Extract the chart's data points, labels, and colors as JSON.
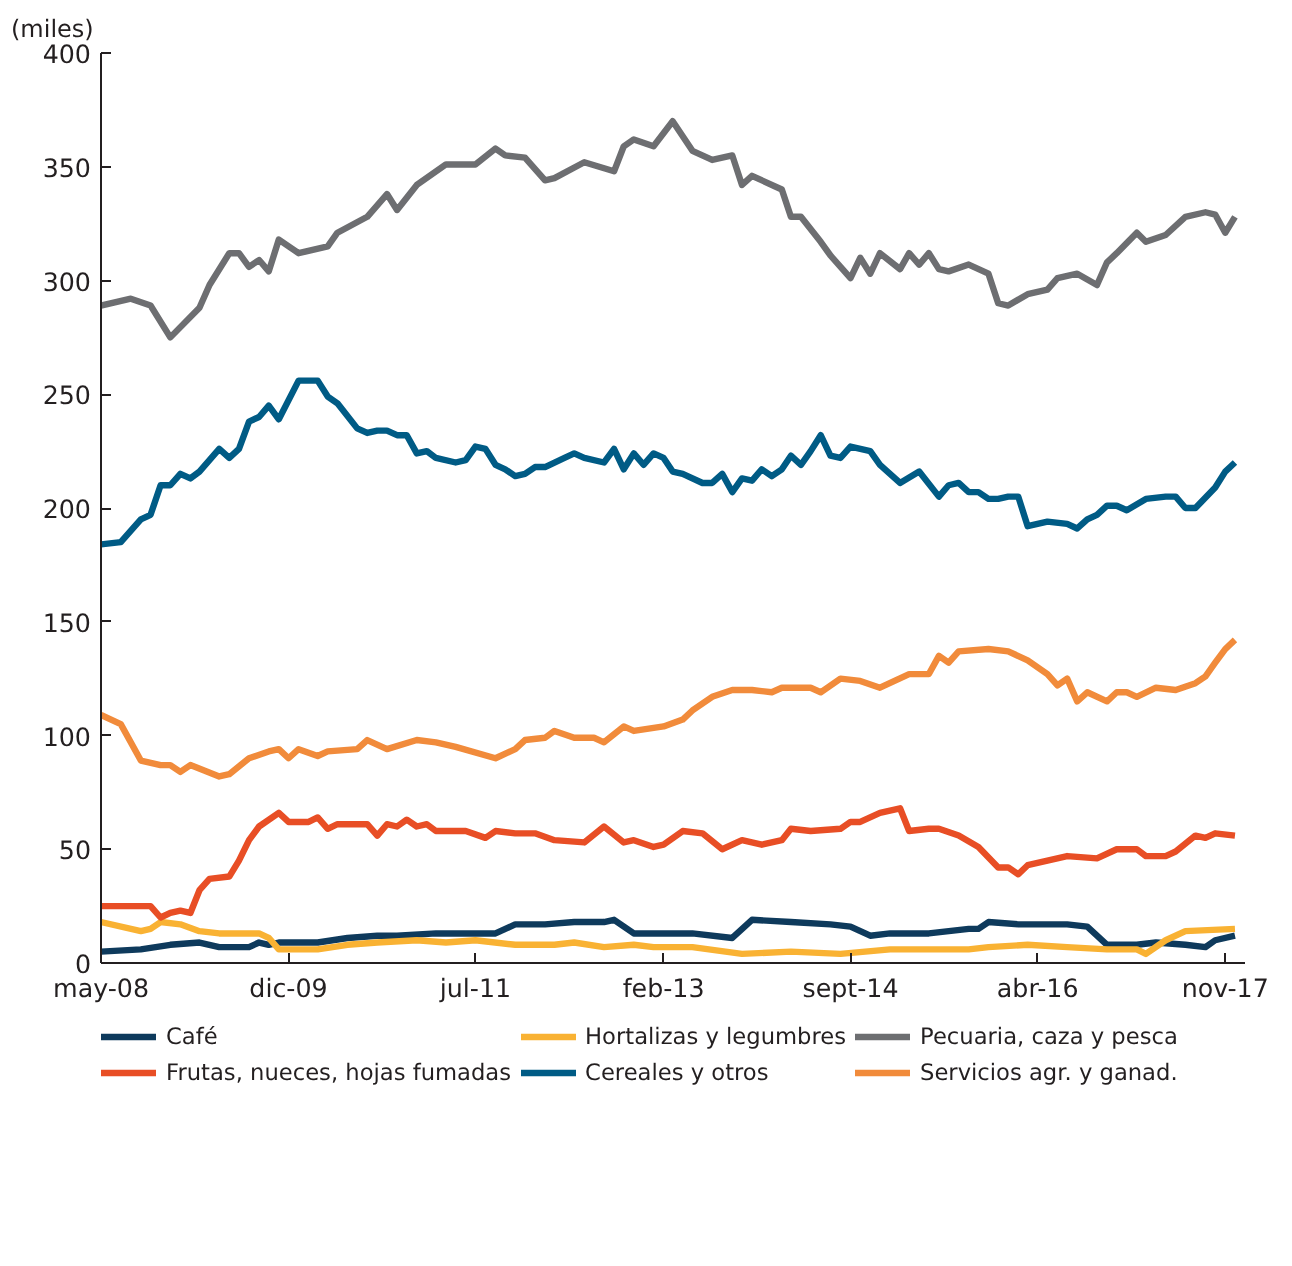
{
  "chart_data": {
    "type": "line",
    "ylabel": "(miles)",
    "xlim": [
      "2008-05",
      "2018-01"
    ],
    "ylim": [
      0,
      400
    ],
    "xticks": [
      {
        "value": "2008-05",
        "label": "may-08"
      },
      {
        "value": "2009-12",
        "label": "dic-09"
      },
      {
        "value": "2011-07",
        "label": "jul-11"
      },
      {
        "value": "2013-02",
        "label": "feb-13"
      },
      {
        "value": "2014-09",
        "label": "sept-14"
      },
      {
        "value": "2016-04",
        "label": "abr-16"
      },
      {
        "value": "2017-11",
        "label": "nov-17"
      }
    ],
    "yticks": [
      0,
      50,
      100,
      150,
      200,
      250,
      300,
      350,
      400
    ],
    "grid": false,
    "legend": "bottom",
    "marker": "none",
    "line_style": "solid",
    "series": [
      {
        "name": "Café",
        "color": "#0e3a5c",
        "x": [
          "2008-05",
          "2008-09",
          "2008-12",
          "2009-03",
          "2009-05",
          "2009-08",
          "2009-09",
          "2009-10",
          "2009-11",
          "2010-01",
          "2010-03",
          "2010-06",
          "2010-09",
          "2010-11",
          "2011-03",
          "2011-07",
          "2011-09",
          "2011-11",
          "2012-02",
          "2012-05",
          "2012-08",
          "2012-09",
          "2012-11",
          "2013-01",
          "2013-05",
          "2013-09",
          "2013-11",
          "2014-03",
          "2014-07",
          "2014-09",
          "2014-11",
          "2015-01",
          "2015-05",
          "2015-09",
          "2015-10",
          "2015-11",
          "2016-02",
          "2016-05",
          "2016-07",
          "2016-09",
          "2016-11",
          "2017-02",
          "2017-04",
          "2017-07",
          "2017-09",
          "2017-10",
          "2017-12"
        ],
        "values": [
          5,
          6,
          8,
          9,
          7,
          7,
          9,
          8,
          9,
          9,
          9,
          11,
          12,
          12,
          13,
          13,
          13,
          17,
          17,
          18,
          18,
          19,
          13,
          13,
          13,
          11,
          19,
          18,
          17,
          16,
          12,
          13,
          13,
          15,
          15,
          18,
          17,
          17,
          17,
          16,
          8,
          8,
          9,
          8,
          7,
          10,
          12
        ]
      },
      {
        "name": "Hortalizas y legumbres",
        "color": "#f9b233",
        "x": [
          "2008-05",
          "2008-09",
          "2008-10",
          "2008-11",
          "2009-01",
          "2009-03",
          "2009-05",
          "2009-09",
          "2009-10",
          "2009-11",
          "2010-03",
          "2010-06",
          "2010-09",
          "2011-01",
          "2011-04",
          "2011-07",
          "2011-11",
          "2012-03",
          "2012-05",
          "2012-08",
          "2012-11",
          "2013-01",
          "2013-05",
          "2013-10",
          "2014-03",
          "2014-08",
          "2015-01",
          "2015-05",
          "2015-09",
          "2015-11",
          "2016-03",
          "2016-07",
          "2016-11",
          "2017-02",
          "2017-03",
          "2017-05",
          "2017-07",
          "2017-12"
        ],
        "values": [
          18,
          14,
          15,
          18,
          17,
          14,
          13,
          13,
          11,
          6,
          6,
          8,
          9,
          10,
          9,
          10,
          8,
          8,
          9,
          7,
          8,
          7,
          7,
          4,
          5,
          4,
          6,
          6,
          6,
          7,
          8,
          7,
          6,
          6,
          4,
          10,
          14,
          15
        ]
      },
      {
        "name": "Pecuaria, caza y pesca",
        "color": "#6d6e71",
        "x": [
          "2008-05",
          "2008-08",
          "2008-10",
          "2008-12",
          "2009-03",
          "2009-04",
          "2009-06",
          "2009-07",
          "2009-08",
          "2009-09",
          "2009-10",
          "2009-11",
          "2010-01",
          "2010-04",
          "2010-05",
          "2010-08",
          "2010-10",
          "2010-11",
          "2011-01",
          "2011-04",
          "2011-07",
          "2011-09",
          "2011-10",
          "2011-12",
          "2012-02",
          "2012-03",
          "2012-06",
          "2012-09",
          "2012-10",
          "2012-11",
          "2013-01",
          "2013-03",
          "2013-05",
          "2013-07",
          "2013-09",
          "2013-10",
          "2013-11",
          "2014-02",
          "2014-03",
          "2014-04",
          "2014-06",
          "2014-07",
          "2014-09",
          "2014-10",
          "2014-11",
          "2014-12",
          "2015-02",
          "2015-03",
          "2015-04",
          "2015-05",
          "2015-06",
          "2015-07",
          "2015-09",
          "2015-11",
          "2015-12",
          "2016-01",
          "2016-03",
          "2016-05",
          "2016-06",
          "2016-08",
          "2016-10",
          "2016-11",
          "2016-12",
          "2017-02",
          "2017-03",
          "2017-05",
          "2017-07",
          "2017-09",
          "2017-10",
          "2017-11",
          "2017-12"
        ],
        "values": [
          289,
          292,
          289,
          275,
          288,
          298,
          312,
          312,
          306,
          309,
          304,
          318,
          312,
          315,
          321,
          328,
          338,
          331,
          342,
          351,
          351,
          358,
          355,
          354,
          344,
          345,
          352,
          348,
          359,
          362,
          359,
          370,
          357,
          353,
          355,
          342,
          346,
          340,
          328,
          328,
          317,
          311,
          301,
          310,
          303,
          312,
          305,
          312,
          307,
          312,
          305,
          304,
          307,
          303,
          290,
          289,
          294,
          296,
          301,
          303,
          298,
          308,
          312,
          321,
          317,
          320,
          328,
          330,
          329,
          321,
          328
        ]
      },
      {
        "name": "Frutas, nueces, hojas fumadas",
        "color": "#e84e25",
        "x": [
          "2008-05",
          "2008-10",
          "2008-11",
          "2008-12",
          "2009-01",
          "2009-02",
          "2009-03",
          "2009-04",
          "2009-06",
          "2009-07",
          "2009-08",
          "2009-09",
          "2009-11",
          "2009-12",
          "2010-02",
          "2010-03",
          "2010-04",
          "2010-05",
          "2010-08",
          "2010-09",
          "2010-10",
          "2010-11",
          "2010-12",
          "2011-01",
          "2011-02",
          "2011-03",
          "2011-06",
          "2011-08",
          "2011-09",
          "2011-11",
          "2012-01",
          "2012-03",
          "2012-06",
          "2012-08",
          "2012-10",
          "2012-11",
          "2013-01",
          "2013-02",
          "2013-04",
          "2013-06",
          "2013-08",
          "2013-10",
          "2013-12",
          "2014-02",
          "2014-03",
          "2014-05",
          "2014-08",
          "2014-09",
          "2014-10",
          "2014-12",
          "2015-02",
          "2015-03",
          "2015-05",
          "2015-06",
          "2015-08",
          "2015-10",
          "2015-12",
          "2016-01",
          "2016-02",
          "2016-03",
          "2016-05",
          "2016-07",
          "2016-10",
          "2016-12",
          "2017-02",
          "2017-03",
          "2017-05",
          "2017-06",
          "2017-08",
          "2017-09",
          "2017-10",
          "2017-12"
        ],
        "values": [
          25,
          25,
          20,
          22,
          23,
          22,
          32,
          37,
          38,
          45,
          54,
          60,
          66,
          62,
          62,
          64,
          59,
          61,
          61,
          56,
          61,
          60,
          63,
          60,
          61,
          58,
          58,
          55,
          58,
          57,
          57,
          54,
          53,
          60,
          53,
          54,
          51,
          52,
          58,
          57,
          50,
          54,
          52,
          54,
          59,
          58,
          59,
          62,
          62,
          66,
          68,
          58,
          59,
          59,
          56,
          51,
          42,
          42,
          39,
          43,
          45,
          47,
          46,
          50,
          50,
          47,
          47,
          49,
          56,
          55,
          57,
          56
        ]
      },
      {
        "name": "Cereales y otros",
        "color": "#005b85",
        "x": [
          "2008-05",
          "2008-07",
          "2008-09",
          "2008-10",
          "2008-11",
          "2008-12",
          "2009-01",
          "2009-02",
          "2009-03",
          "2009-05",
          "2009-06",
          "2009-07",
          "2009-08",
          "2009-09",
          "2009-10",
          "2009-11",
          "2010-01",
          "2010-03",
          "2010-04",
          "2010-05",
          "2010-07",
          "2010-08",
          "2010-09",
          "2010-10",
          "2010-11",
          "2010-12",
          "2011-01",
          "2011-02",
          "2011-03",
          "2011-05",
          "2011-06",
          "2011-07",
          "2011-08",
          "2011-09",
          "2011-10",
          "2011-11",
          "2011-12",
          "2012-01",
          "2012-02",
          "2012-04",
          "2012-05",
          "2012-06",
          "2012-08",
          "2012-09",
          "2012-10",
          "2012-11",
          "2012-12",
          "2013-01",
          "2013-02",
          "2013-03",
          "2013-04",
          "2013-06",
          "2013-07",
          "2013-08",
          "2013-09",
          "2013-10",
          "2013-11",
          "2013-12",
          "2014-01",
          "2014-02",
          "2014-03",
          "2014-04",
          "2014-05",
          "2014-06",
          "2014-07",
          "2014-08",
          "2014-09",
          "2014-11",
          "2014-12",
          "2015-02",
          "2015-04",
          "2015-06",
          "2015-07",
          "2015-08",
          "2015-09",
          "2015-10",
          "2015-11",
          "2015-12",
          "2016-01",
          "2016-02",
          "2016-03",
          "2016-05",
          "2016-07",
          "2016-08",
          "2016-09",
          "2016-10",
          "2016-11",
          "2016-12",
          "2017-01",
          "2017-03",
          "2017-05",
          "2017-06",
          "2017-07",
          "2017-08",
          "2017-10",
          "2017-11",
          "2017-12"
        ],
        "values": [
          184,
          185,
          195,
          197,
          210,
          210,
          215,
          213,
          216,
          226,
          222,
          226,
          238,
          240,
          245,
          239,
          256,
          256,
          249,
          246,
          235,
          233,
          234,
          234,
          232,
          232,
          224,
          225,
          222,
          220,
          221,
          227,
          226,
          219,
          217,
          214,
          215,
          218,
          218,
          222,
          224,
          222,
          220,
          226,
          217,
          224,
          219,
          224,
          222,
          216,
          215,
          211,
          211,
          215,
          207,
          213,
          212,
          217,
          214,
          217,
          223,
          219,
          225,
          232,
          223,
          222,
          227,
          225,
          219,
          211,
          216,
          205,
          210,
          211,
          207,
          207,
          204,
          204,
          205,
          205,
          192,
          194,
          193,
          191,
          195,
          197,
          201,
          201,
          199,
          204,
          205,
          205,
          200,
          200,
          209,
          216,
          220
        ]
      },
      {
        "name": "Servicios agr. y ganad.",
        "color": "#f18b3b",
        "x": [
          "2008-05",
          "2008-07",
          "2008-09",
          "2008-11",
          "2008-12",
          "2009-01",
          "2009-02",
          "2009-05",
          "2009-06",
          "2009-08",
          "2009-10",
          "2009-11",
          "2009-12",
          "2010-01",
          "2010-03",
          "2010-04",
          "2010-07",
          "2010-08",
          "2010-10",
          "2011-01",
          "2011-03",
          "2011-05",
          "2011-09",
          "2011-11",
          "2011-12",
          "2012-02",
          "2012-03",
          "2012-05",
          "2012-07",
          "2012-08",
          "2012-10",
          "2012-11",
          "2013-02",
          "2013-04",
          "2013-05",
          "2013-07",
          "2013-09",
          "2013-11",
          "2014-01",
          "2014-02",
          "2014-05",
          "2014-06",
          "2014-08",
          "2014-10",
          "2014-12",
          "2015-03",
          "2015-05",
          "2015-06",
          "2015-07",
          "2015-08",
          "2015-11",
          "2016-01",
          "2016-03",
          "2016-05",
          "2016-06",
          "2016-07",
          "2016-08",
          "2016-09",
          "2016-11",
          "2016-12",
          "2017-01",
          "2017-02",
          "2017-04",
          "2017-06",
          "2017-08",
          "2017-09",
          "2017-10",
          "2017-11",
          "2017-12"
        ],
        "values": [
          109,
          105,
          89,
          87,
          87,
          84,
          87,
          82,
          83,
          90,
          93,
          94,
          90,
          94,
          91,
          93,
          94,
          98,
          94,
          98,
          97,
          95,
          90,
          94,
          98,
          99,
          102,
          99,
          99,
          97,
          104,
          102,
          104,
          107,
          111,
          117,
          120,
          120,
          119,
          121,
          121,
          119,
          125,
          124,
          121,
          127,
          127,
          135,
          132,
          137,
          138,
          137,
          133,
          127,
          122,
          125,
          115,
          119,
          115,
          119,
          119,
          117,
          121,
          120,
          123,
          126,
          132,
          138,
          142
        ]
      }
    ]
  }
}
